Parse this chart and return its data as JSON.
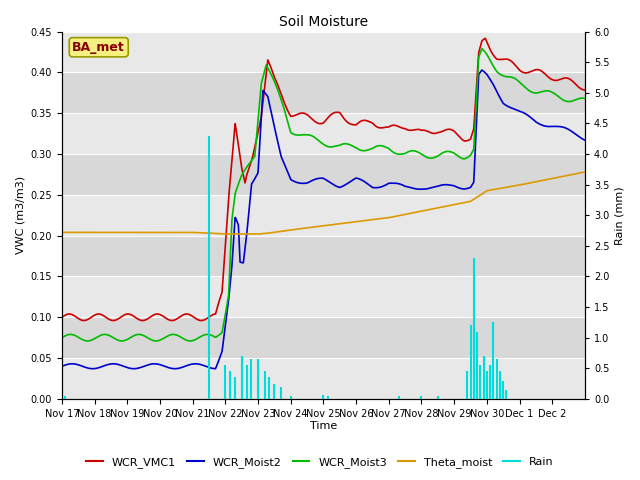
{
  "title": "Soil Moisture",
  "ylabel_left": "VWC (m3/m3)",
  "ylabel_right": "Rain (mm)",
  "xlabel": "Time",
  "station_label": "BA_met",
  "ylim_left": [
    0,
    0.45
  ],
  "ylim_right": [
    0,
    6.0
  ],
  "x_tick_labels": [
    "Nov 17",
    "Nov 18",
    "Nov 19",
    "Nov 20",
    "Nov 21",
    "Nov 22",
    "Nov 23",
    "Nov 24",
    "Nov 25",
    "Nov 26",
    "Nov 27",
    "Nov 28",
    "Nov 29",
    "Nov 30",
    "Dec 1",
    "Dec 2"
  ],
  "fig_bg": "#ffffff",
  "plot_bg": "#e8e8e8",
  "grid_color": "#ffffff",
  "colors": {
    "WCR_VMC1": "#cc0000",
    "WCR_Moist2": "#0000cc",
    "WCR_Moist3": "#00bb00",
    "Theta_moist": "#dd9900",
    "Rain": "#00dddd"
  },
  "lw": 1.2,
  "title_fontsize": 10,
  "label_fontsize": 8,
  "tick_fontsize": 7,
  "legend_fontsize": 8
}
